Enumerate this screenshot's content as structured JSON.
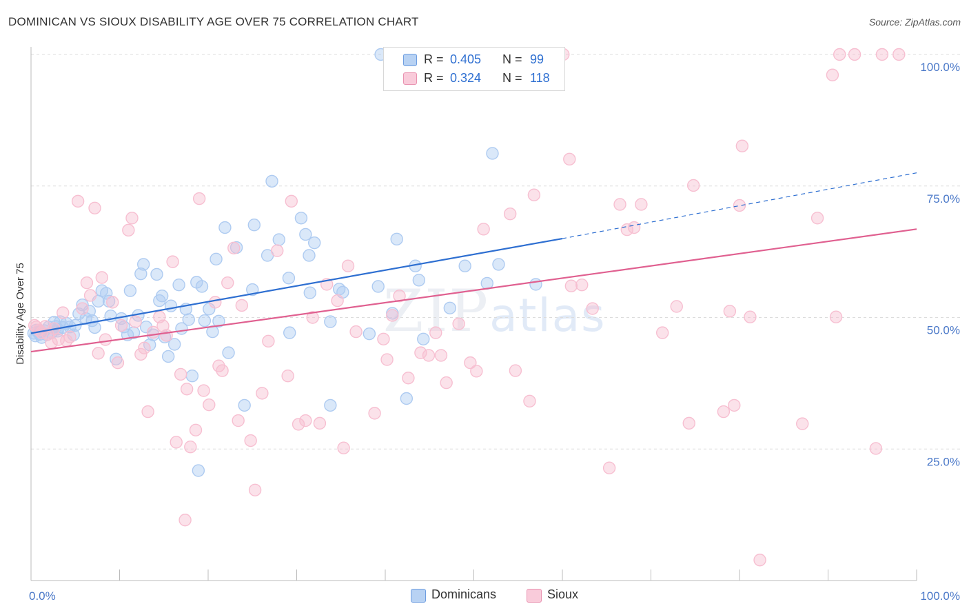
{
  "header": {
    "title": "DOMINICAN VS SIOUX DISABILITY AGE OVER 75 CORRELATION CHART",
    "source": "Source: ZipAtlas.com"
  },
  "watermark": {
    "zip": "ZIP",
    "atlas": "atlas"
  },
  "legend": {
    "rows": [
      {
        "r_label": "R =",
        "r_value": "0.405",
        "n_label": "N =",
        "n_value": "99",
        "color": "#8ab4ea"
      },
      {
        "r_label": "R =",
        "r_value": "0.324",
        "n_label": "N =",
        "n_value": "118",
        "color": "#f4a8c0"
      }
    ]
  },
  "bottom_legend": {
    "items": [
      {
        "label": "Dominicans",
        "color": "#8ab4ea"
      },
      {
        "label": "Sioux",
        "color": "#f4a8c0"
      }
    ]
  },
  "chart_data": {
    "type": "scatter",
    "ylabel": "Disability Age Over 75",
    "xlabel": "",
    "xlim": [
      0,
      100
    ],
    "ylim": [
      0,
      100
    ],
    "x_tick_labels": [
      "0.0%",
      "100.0%"
    ],
    "y_tick_labels": [
      "25.0%",
      "50.0%",
      "75.0%",
      "100.0%"
    ],
    "y_gridlines": [
      25,
      50,
      75,
      100
    ],
    "legend_position": "top-center",
    "series": [
      {
        "name": "Dominicans",
        "color": "#2e6fd1",
        "fill": "#aecbf1",
        "trend": {
          "x0": 0,
          "y0": 47.0,
          "x1": 60,
          "y1": 65.0,
          "dashed_to_x": 100,
          "dashed_to_y": 77.5
        },
        "points": [
          [
            0.3,
            47
          ],
          [
            0.5,
            46.5
          ],
          [
            0.8,
            47.2
          ],
          [
            1.0,
            46.8
          ],
          [
            1.2,
            46.2
          ],
          [
            1.5,
            47.5
          ],
          [
            1.8,
            46.7
          ],
          [
            2.0,
            48.2
          ],
          [
            2.3,
            47.1
          ],
          [
            2.6,
            49.1
          ],
          [
            2.8,
            48.3
          ],
          [
            3.0,
            47.8
          ],
          [
            3.3,
            49.2
          ],
          [
            3.6,
            48.1
          ],
          [
            4.0,
            48.9
          ],
          [
            4.4,
            48.2
          ],
          [
            4.8,
            46.7
          ],
          [
            5.0,
            48.5
          ],
          [
            5.4,
            50.7
          ],
          [
            5.8,
            52.4
          ],
          [
            6.2,
            49.8
          ],
          [
            6.6,
            51.2
          ],
          [
            6.9,
            49.4
          ],
          [
            7.2,
            48.1
          ],
          [
            7.6,
            53.1
          ],
          [
            8.0,
            55.1
          ],
          [
            8.5,
            54.6
          ],
          [
            8.8,
            53.1
          ],
          [
            9.0,
            50.3
          ],
          [
            9.6,
            42.1
          ],
          [
            10.2,
            49.8
          ],
          [
            10.5,
            48.2
          ],
          [
            10.9,
            46.7
          ],
          [
            11.2,
            55.1
          ],
          [
            11.6,
            47.1
          ],
          [
            12.1,
            50.4
          ],
          [
            12.4,
            58.3
          ],
          [
            12.7,
            60.1
          ],
          [
            13.0,
            48.2
          ],
          [
            13.4,
            44.8
          ],
          [
            13.8,
            46.7
          ],
          [
            14.2,
            58.2
          ],
          [
            14.5,
            53.2
          ],
          [
            14.8,
            54.1
          ],
          [
            15.1,
            46.3
          ],
          [
            15.5,
            42.6
          ],
          [
            15.8,
            52.2
          ],
          [
            16.2,
            44.9
          ],
          [
            16.7,
            56.2
          ],
          [
            17.0,
            47.9
          ],
          [
            17.5,
            51.6
          ],
          [
            17.8,
            49.6
          ],
          [
            18.2,
            38.9
          ],
          [
            18.7,
            56.7
          ],
          [
            18.9,
            20.9
          ],
          [
            19.3,
            55.9
          ],
          [
            19.6,
            49.4
          ],
          [
            20.1,
            51.6
          ],
          [
            20.5,
            47.3
          ],
          [
            20.9,
            61.1
          ],
          [
            21.2,
            49.3
          ],
          [
            21.9,
            67.1
          ],
          [
            22.3,
            43.3
          ],
          [
            23.2,
            63.3
          ],
          [
            24.1,
            33.3
          ],
          [
            25.0,
            55.3
          ],
          [
            25.2,
            67.6
          ],
          [
            26.7,
            61.8
          ],
          [
            27.2,
            75.9
          ],
          [
            28.0,
            64.8
          ],
          [
            29.1,
            57.5
          ],
          [
            29.2,
            47.1
          ],
          [
            30.5,
            68.9
          ],
          [
            31.0,
            65.8
          ],
          [
            31.4,
            61.8
          ],
          [
            31.5,
            54.7
          ],
          [
            32.0,
            64.2
          ],
          [
            33.8,
            49.2
          ],
          [
            33.8,
            33.3
          ],
          [
            34.8,
            55.4
          ],
          [
            35.2,
            54.8
          ],
          [
            38.2,
            46.9
          ],
          [
            39.2,
            55.9
          ],
          [
            39.5,
            100
          ],
          [
            40.8,
            50.8
          ],
          [
            41.3,
            64.9
          ],
          [
            42.4,
            34.6
          ],
          [
            43.4,
            59.8
          ],
          [
            43.8,
            57.1
          ],
          [
            44.3,
            45.9
          ],
          [
            47.3,
            51.8
          ],
          [
            49.0,
            59.8
          ],
          [
            51.5,
            56.5
          ],
          [
            52.1,
            81.2
          ],
          [
            52.8,
            60.1
          ],
          [
            57.0,
            56.3
          ],
          [
            3.0,
            47.4
          ],
          [
            1.1,
            47.3
          ],
          [
            0.6,
            47.6
          ]
        ]
      },
      {
        "name": "Sioux",
        "color": "#e06090",
        "fill": "#f7bfd1",
        "trend": {
          "x0": 0,
          "y0": 43.5,
          "x1": 100,
          "y1": 66.8
        },
        "points": [
          [
            0.4,
            48.5
          ],
          [
            0.6,
            48.2
          ],
          [
            0.9,
            47.6
          ],
          [
            1.2,
            47.1
          ],
          [
            1.6,
            48.3
          ],
          [
            1.9,
            46.8
          ],
          [
            2.3,
            45.2
          ],
          [
            2.6,
            47.9
          ],
          [
            3.1,
            45.8
          ],
          [
            3.6,
            50.9
          ],
          [
            4.0,
            45.6
          ],
          [
            4.4,
            46.3
          ],
          [
            5.3,
            72.1
          ],
          [
            5.8,
            51.7
          ],
          [
            6.3,
            56.6
          ],
          [
            6.7,
            54.2
          ],
          [
            7.2,
            70.8
          ],
          [
            7.6,
            43.2
          ],
          [
            8.0,
            57.6
          ],
          [
            8.4,
            45.8
          ],
          [
            9.2,
            52.9
          ],
          [
            9.8,
            41.4
          ],
          [
            10.2,
            48.5
          ],
          [
            11.0,
            66.6
          ],
          [
            11.4,
            68.9
          ],
          [
            11.8,
            49.2
          ],
          [
            12.4,
            43.0
          ],
          [
            12.8,
            44.2
          ],
          [
            13.2,
            32.1
          ],
          [
            13.8,
            47.2
          ],
          [
            14.5,
            50.1
          ],
          [
            14.9,
            48.4
          ],
          [
            15.3,
            46.6
          ],
          [
            16.0,
            60.6
          ],
          [
            16.4,
            26.3
          ],
          [
            16.9,
            39.2
          ],
          [
            17.4,
            11.5
          ],
          [
            17.6,
            36.4
          ],
          [
            18.0,
            25.4
          ],
          [
            18.6,
            28.6
          ],
          [
            19.0,
            72.6
          ],
          [
            19.5,
            36.1
          ],
          [
            20.1,
            33.4
          ],
          [
            20.8,
            52.9
          ],
          [
            21.2,
            40.8
          ],
          [
            21.6,
            39.9
          ],
          [
            22.2,
            56.6
          ],
          [
            22.9,
            63.2
          ],
          [
            23.4,
            30.4
          ],
          [
            23.8,
            52.3
          ],
          [
            24.8,
            26.6
          ],
          [
            25.3,
            17.2
          ],
          [
            26.1,
            35.6
          ],
          [
            26.8,
            45.5
          ],
          [
            27.8,
            62.7
          ],
          [
            29.0,
            38.9
          ],
          [
            29.4,
            72.1
          ],
          [
            30.2,
            29.7
          ],
          [
            31.0,
            30.4
          ],
          [
            31.8,
            50.0
          ],
          [
            32.6,
            29.9
          ],
          [
            33.4,
            56.3
          ],
          [
            34.6,
            53.2
          ],
          [
            35.3,
            25.2
          ],
          [
            35.8,
            59.8
          ],
          [
            36.7,
            47.3
          ],
          [
            38.8,
            31.8
          ],
          [
            39.8,
            45.9
          ],
          [
            40.2,
            42.0
          ],
          [
            40.8,
            50.4
          ],
          [
            41.6,
            54.1
          ],
          [
            42.6,
            38.5
          ],
          [
            44.0,
            43.3
          ],
          [
            44.9,
            42.8
          ],
          [
            45.7,
            47.1
          ],
          [
            46.3,
            42.8
          ],
          [
            46.9,
            37.6
          ],
          [
            48.3,
            48.8
          ],
          [
            49.6,
            41.4
          ],
          [
            50.3,
            39.8
          ],
          [
            51.1,
            66.8
          ],
          [
            54.1,
            69.7
          ],
          [
            54.7,
            39.9
          ],
          [
            56.3,
            34.1
          ],
          [
            56.8,
            73.3
          ],
          [
            58.1,
            100
          ],
          [
            59.1,
            100
          ],
          [
            59.6,
            100
          ],
          [
            60.1,
            100
          ],
          [
            60.8,
            80.1
          ],
          [
            61.0,
            56.0
          ],
          [
            62.2,
            56.2
          ],
          [
            63.4,
            51.7
          ],
          [
            65.3,
            21.4
          ],
          [
            66.5,
            71.5
          ],
          [
            67.3,
            66.7
          ],
          [
            68.1,
            67.1
          ],
          [
            68.9,
            71.5
          ],
          [
            71.3,
            47.1
          ],
          [
            72.9,
            52.1
          ],
          [
            74.3,
            29.9
          ],
          [
            74.8,
            75.1
          ],
          [
            78.2,
            32.1
          ],
          [
            78.9,
            51.2
          ],
          [
            79.4,
            33.3
          ],
          [
            80.0,
            71.3
          ],
          [
            80.3,
            82.6
          ],
          [
            81.2,
            50.1
          ],
          [
            82.3,
            3.9
          ],
          [
            87.1,
            29.8
          ],
          [
            88.8,
            68.9
          ],
          [
            90.5,
            96.1
          ],
          [
            90.9,
            50.1
          ],
          [
            91.3,
            100
          ],
          [
            93.0,
            100
          ],
          [
            95.4,
            25.1
          ],
          [
            96.1,
            100
          ],
          [
            98.0,
            100
          ]
        ]
      }
    ]
  }
}
